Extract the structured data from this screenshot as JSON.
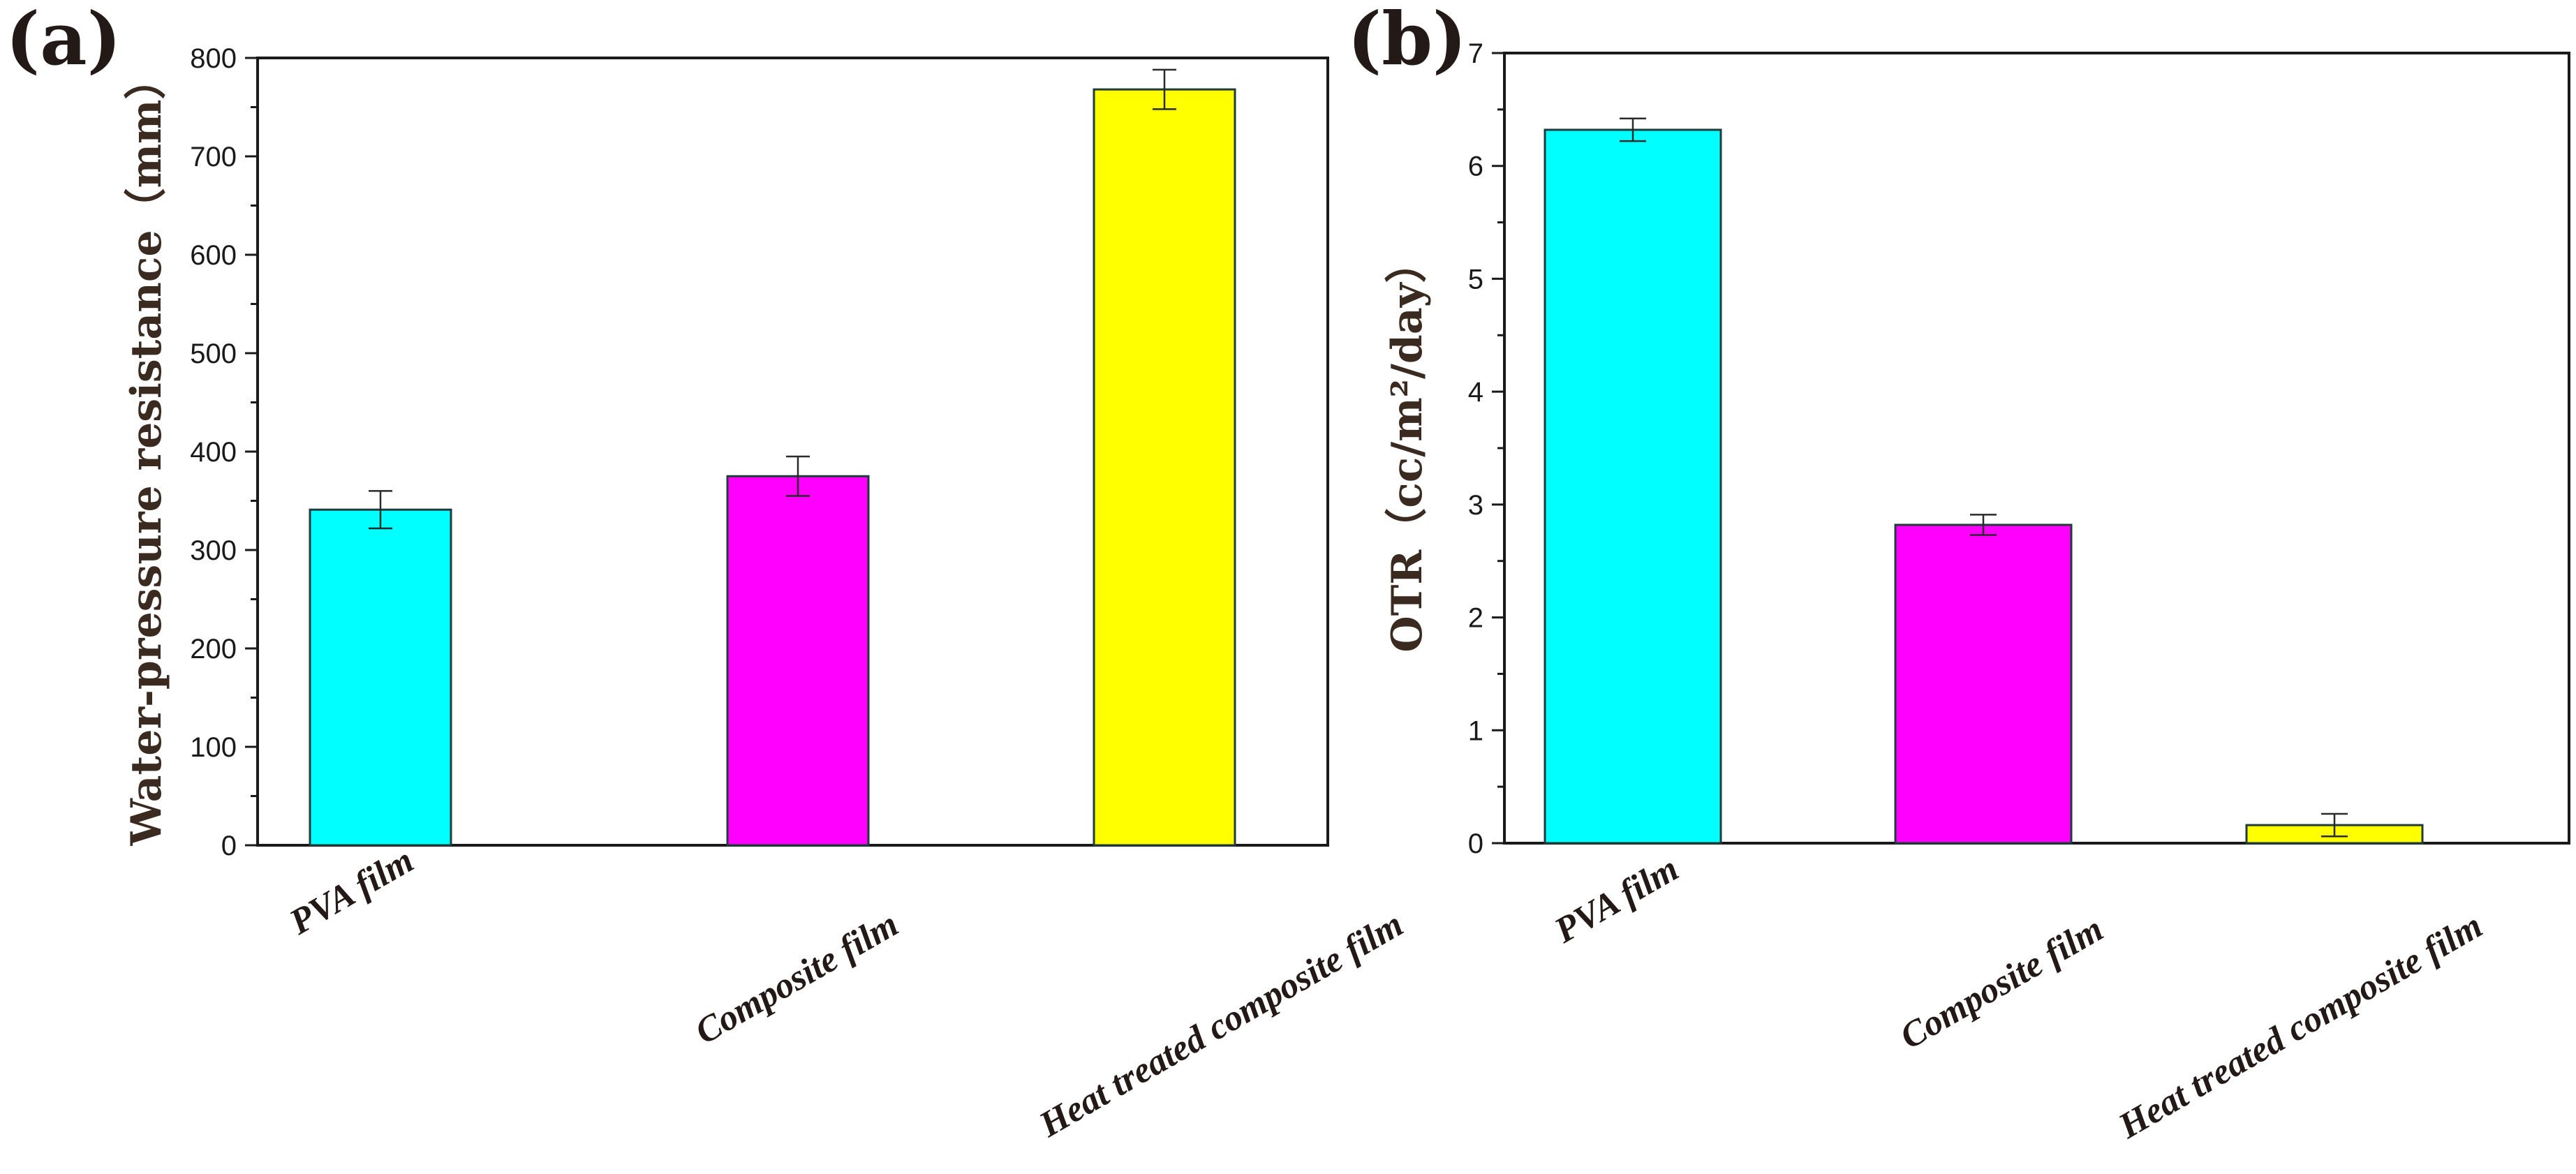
{
  "chart_data": [
    {
      "panel": "(a)",
      "type": "bar",
      "categories": [
        "PVA film",
        "Composite film",
        "Heat treated composite film"
      ],
      "values": [
        341,
        375,
        768
      ],
      "errors": [
        19,
        20,
        20
      ],
      "colors": [
        "#00FFFF",
        "#FF00FF",
        "#FFFF00"
      ],
      "title": "",
      "xlabel": "",
      "ylabel": "Water-pressure resistance（mm）",
      "ylim": [
        0,
        800
      ],
      "yticks": [
        0,
        100,
        200,
        300,
        400,
        500,
        600,
        700,
        800
      ],
      "ytick_labels": [
        "0",
        "100",
        "200",
        "300",
        "400",
        "500",
        "600",
        "700",
        "800"
      ],
      "grid": false
    },
    {
      "panel": "(b)",
      "type": "bar",
      "categories": [
        "PVA film",
        "Composite film",
        "Heat treated composite film"
      ],
      "values": [
        6.32,
        2.82,
        0.16
      ],
      "errors": [
        0.1,
        0.09,
        0.1
      ],
      "colors": [
        "#00FFFF",
        "#FF00FF",
        "#FFFF00"
      ],
      "title": "",
      "xlabel": "",
      "ylabel": "OTR（cc/m²/day）",
      "ylim": [
        0,
        7
      ],
      "yticks": [
        0,
        1,
        2,
        3,
        4,
        5,
        6,
        7
      ],
      "ytick_labels": [
        "0",
        "1",
        "2",
        "3",
        "4",
        "5",
        "6",
        "7"
      ],
      "grid": false
    }
  ]
}
